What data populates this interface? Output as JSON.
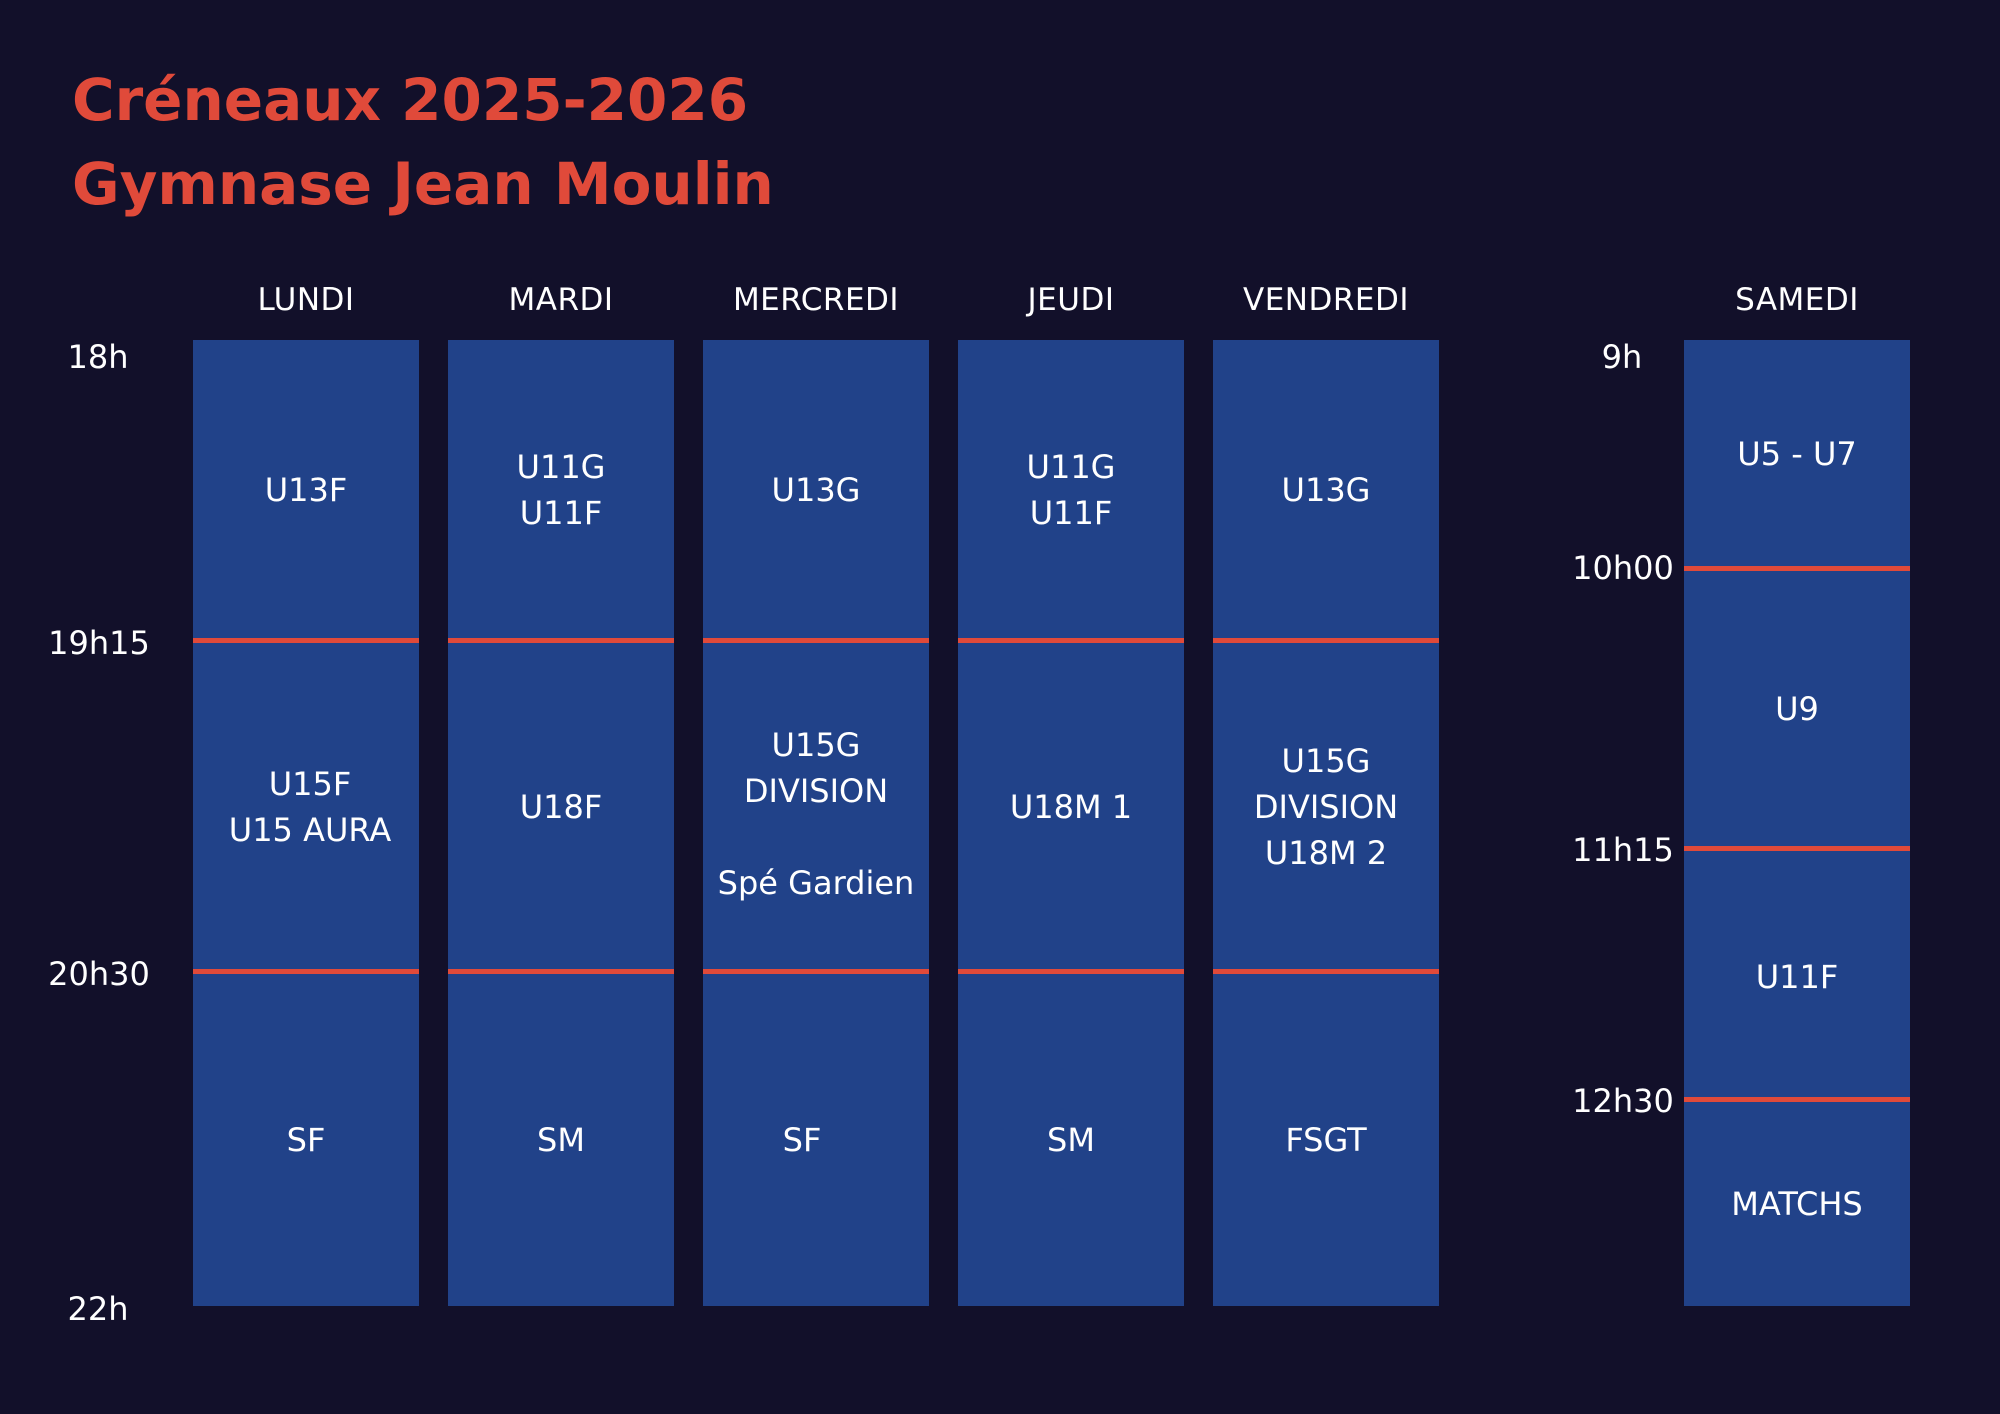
{
  "header": {
    "title_line1": "Créneaux 2025-2026",
    "title_line2": "Gymnase Jean Moulin"
  },
  "colors": {
    "background": "#12102a",
    "title": "#e04a3a",
    "block": "#214289",
    "divider": "#e04a3a",
    "text": "#ffffff"
  },
  "weekday_times": [
    "18h",
    "19h15",
    "20h30",
    "22h"
  ],
  "saturday_times": [
    "9h",
    "10h00",
    "11h15",
    "12h30"
  ],
  "days": [
    {
      "name": "LUNDI",
      "slots": [
        "U13F",
        "U15F\nU15 AURA",
        "SF"
      ]
    },
    {
      "name": "MARDI",
      "slots": [
        "U11G\nU11F",
        "U18F",
        "SM"
      ]
    },
    {
      "name": "MERCREDI",
      "slots": [
        "U13G",
        "U15G\nDIVISION\n\nSpé Gardien",
        "SF"
      ]
    },
    {
      "name": "JEUDI",
      "slots": [
        "U11G\nU11F",
        "U18M 1",
        "SM"
      ]
    },
    {
      "name": "VENDREDI",
      "slots": [
        "U13G",
        "U15G\nDIVISION\nU18M 2",
        "FSGT"
      ]
    }
  ],
  "saturday": {
    "name": "SAMEDI",
    "slots": [
      "U5 - U7",
      "U9",
      "U11F",
      "MATCHS"
    ]
  }
}
